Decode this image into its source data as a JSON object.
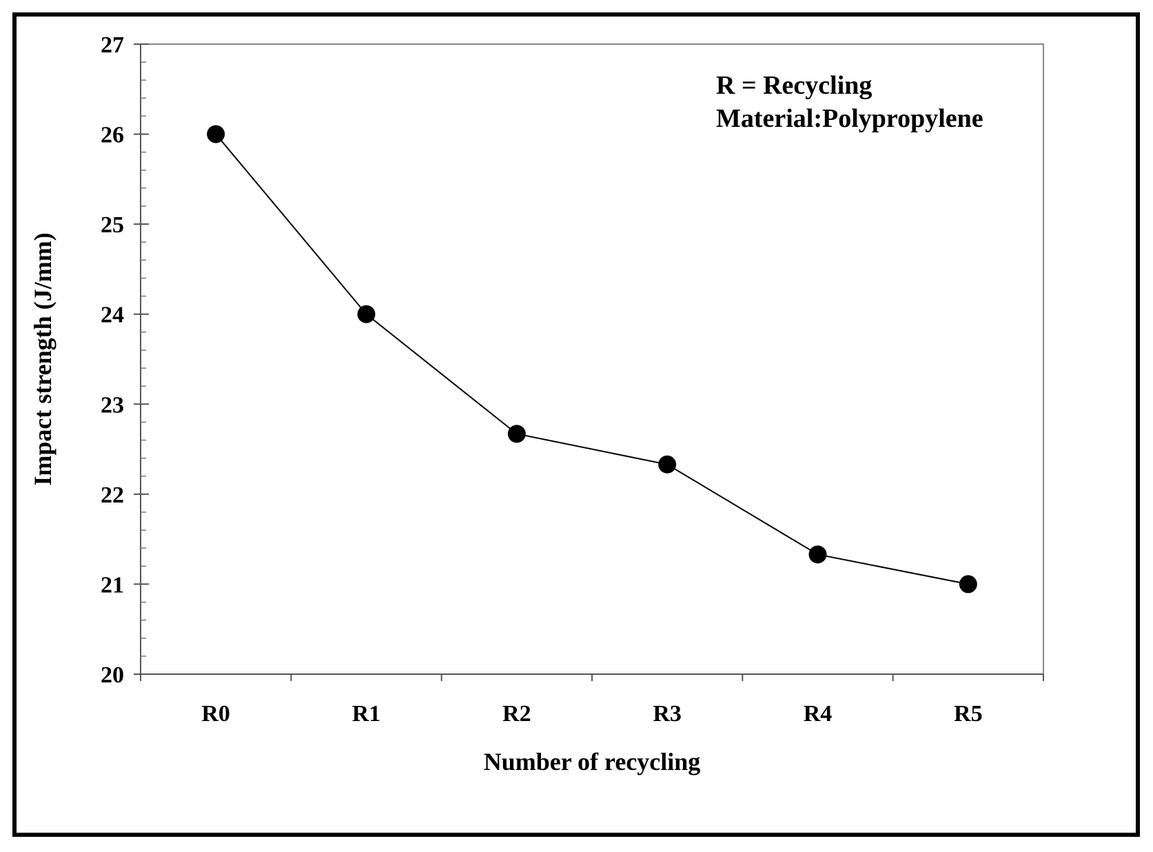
{
  "chart_data": {
    "type": "line",
    "title": "",
    "xlabel": "Number of recycling",
    "ylabel": "Impact strength (J/mm)",
    "categories": [
      "R0",
      "R1",
      "R2",
      "R3",
      "R4",
      "R5"
    ],
    "series": [
      {
        "name": "Polypropylene",
        "values": [
          26.0,
          24.0,
          22.67,
          22.33,
          21.33,
          21.0
        ]
      }
    ],
    "ylim": [
      20,
      27
    ],
    "yticks": [
      "20",
      "21",
      "22",
      "23",
      "24",
      "25",
      "26",
      "27"
    ],
    "grid": false,
    "annotations": [
      "R = Recycling",
      "Material:Polypropylene"
    ],
    "line_color": "#000000",
    "marker_color": "#000000"
  }
}
